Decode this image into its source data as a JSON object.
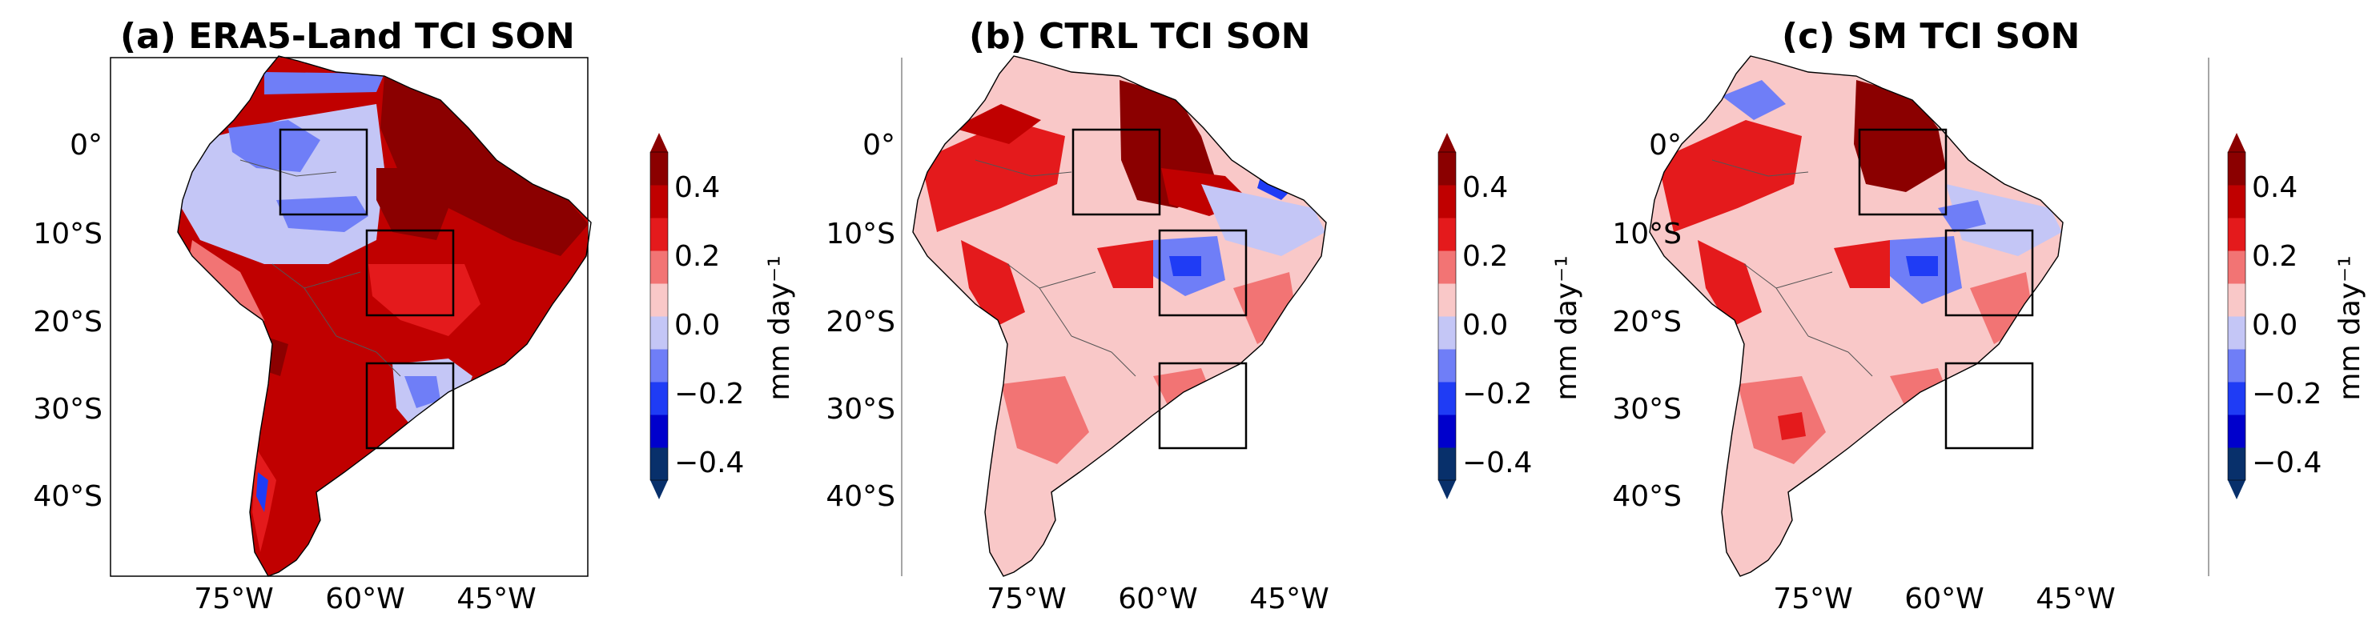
{
  "figure": {
    "panels": [
      {
        "title": "(a) ERA5-Land TCI SON",
        "lat_labels": [
          "0°",
          "10°S",
          "20°S",
          "30°S",
          "40°S"
        ],
        "lon_labels": [
          "75°W",
          "60°W",
          "45°W"
        ]
      },
      {
        "title": "(b) CTRL TCI SON",
        "lat_labels": [
          "0°",
          "10°S",
          "20°S",
          "30°S",
          "40°S"
        ],
        "lon_labels": [
          "75°W",
          "60°W",
          "45°W"
        ]
      },
      {
        "title": "(c) SM TCI SON",
        "lat_labels": [
          "0°",
          "10°S",
          "20°S",
          "30°S",
          "40°S"
        ],
        "lon_labels": [
          "75°W",
          "60°W",
          "45°W"
        ]
      }
    ],
    "colorbar": {
      "ticks": [
        "0.4",
        "0.2",
        "0.0",
        "−0.2",
        "−0.4"
      ],
      "label": "mm day⁻¹",
      "colors": [
        "#08306b",
        "#0000cc",
        "#1f3cf5",
        "#6f7ef7",
        "#c4c6f6",
        "#f9c8c8",
        "#f27474",
        "#e41a1c",
        "#c00000",
        "#8b0000"
      ]
    }
  }
}
